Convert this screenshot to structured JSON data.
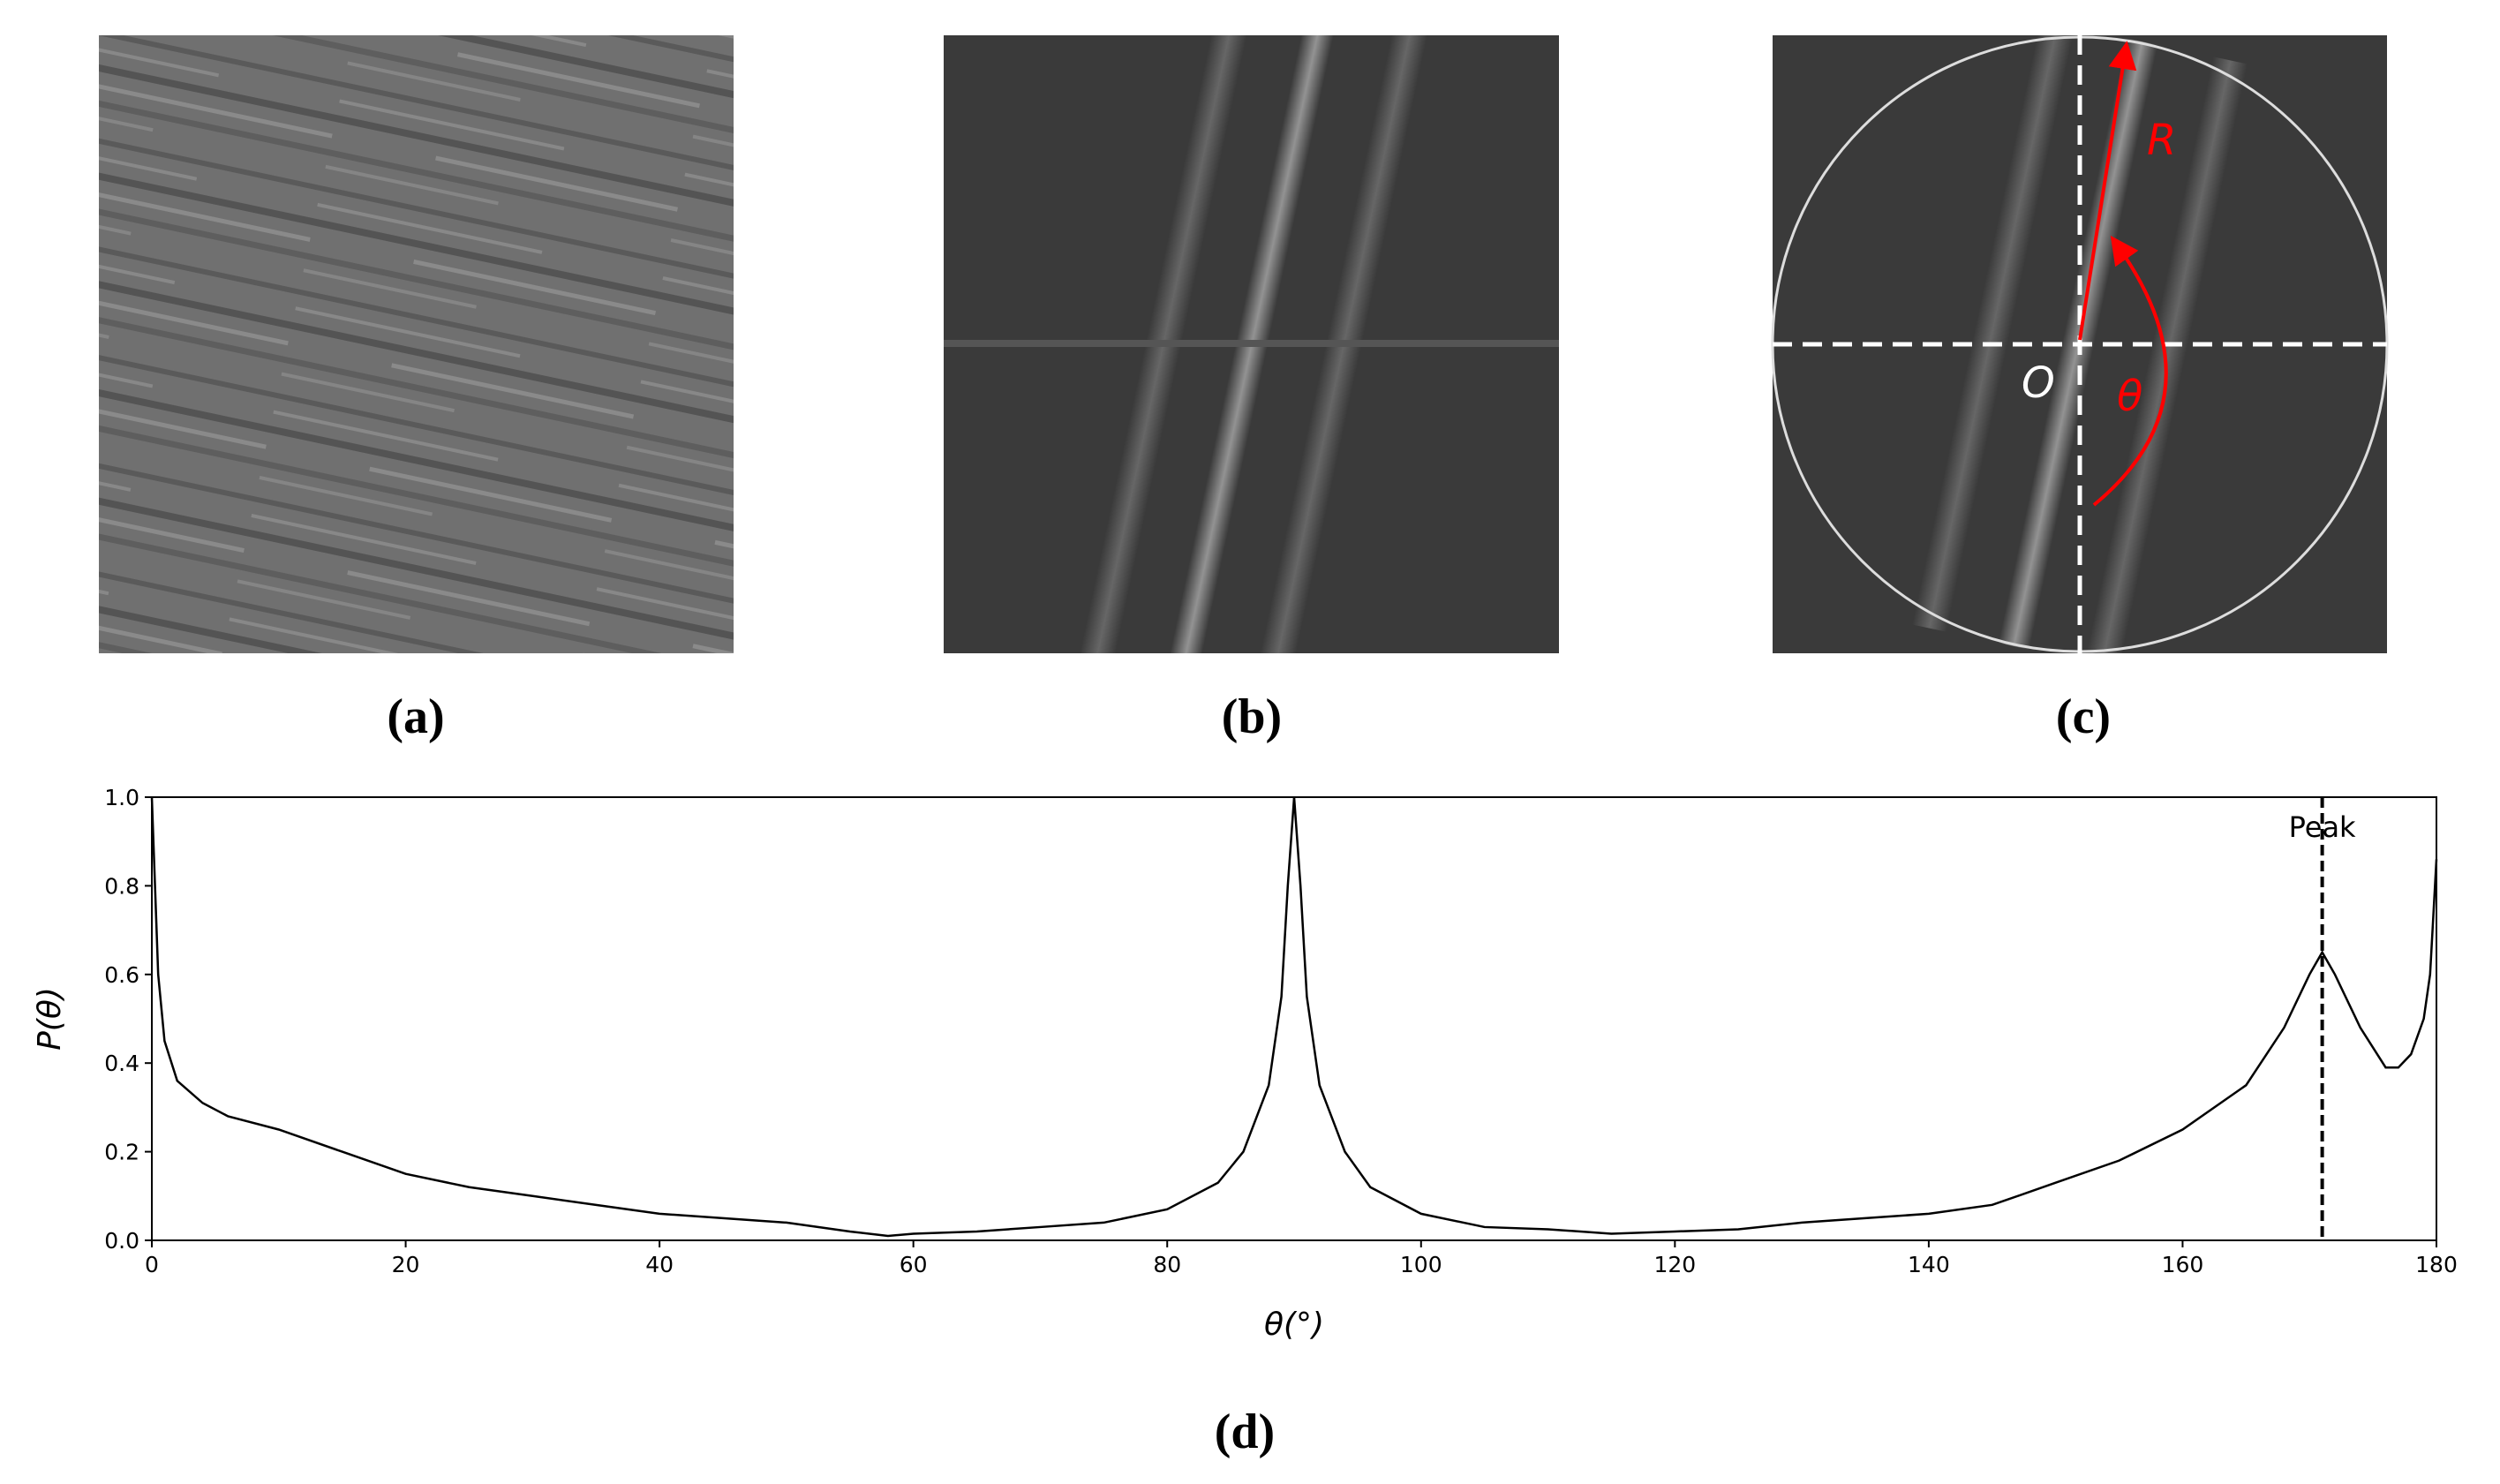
{
  "panel_labels": [
    "(a)",
    "(b)",
    "(c)",
    "(d)"
  ],
  "diagram_labels": {
    "radius": "R",
    "origin": "O",
    "angle": "θ"
  },
  "chart_data": {
    "type": "line",
    "xlabel": "θ(°)",
    "ylabel": "P(θ)",
    "x": [
      0,
      0.5,
      1,
      2,
      4,
      6,
      10,
      15,
      20,
      25,
      30,
      35,
      40,
      45,
      50,
      55,
      58,
      60,
      65,
      70,
      75,
      80,
      84,
      86,
      88,
      89,
      89.5,
      90,
      90.5,
      91,
      92,
      94,
      96,
      100,
      105,
      110,
      115,
      120,
      125,
      130,
      135,
      140,
      145,
      150,
      155,
      160,
      165,
      168,
      170,
      171,
      172,
      174,
      176,
      177,
      178,
      179,
      179.5,
      180
    ],
    "values": [
      1.0,
      0.6,
      0.45,
      0.36,
      0.31,
      0.28,
      0.25,
      0.2,
      0.15,
      0.12,
      0.1,
      0.08,
      0.06,
      0.05,
      0.04,
      0.02,
      0.01,
      0.015,
      0.02,
      0.03,
      0.04,
      0.07,
      0.13,
      0.2,
      0.35,
      0.55,
      0.8,
      1.0,
      0.8,
      0.55,
      0.35,
      0.2,
      0.12,
      0.06,
      0.03,
      0.025,
      0.015,
      0.02,
      0.025,
      0.04,
      0.05,
      0.06,
      0.08,
      0.13,
      0.18,
      0.25,
      0.35,
      0.48,
      0.6,
      0.65,
      0.6,
      0.48,
      0.39,
      0.39,
      0.42,
      0.5,
      0.6,
      0.86
    ],
    "color": "#000000",
    "xlim": [
      0,
      180
    ],
    "xticks": [
      0,
      20,
      40,
      60,
      80,
      100,
      120,
      140,
      160,
      180
    ],
    "ylim": [
      0,
      1
    ],
    "yticks": [
      {
        "value": 0,
        "label": "0.0"
      },
      0.2,
      0.4,
      0.6,
      0.8,
      {
        "value": 1,
        "label": "1.0"
      }
    ],
    "peak": {
      "x": 171,
      "label": "Peak"
    }
  }
}
